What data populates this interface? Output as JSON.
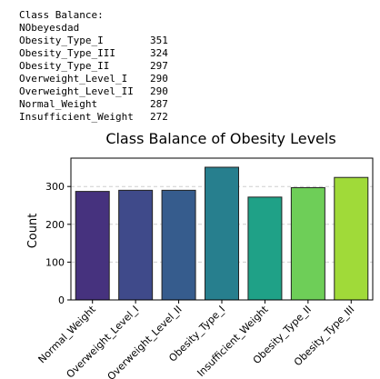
{
  "console": {
    "header": "Class Balance:",
    "subheader": "NObeyesdad",
    "rows": [
      {
        "label": "Obesity_Type_I",
        "count": "351"
      },
      {
        "label": "Obesity_Type_III",
        "count": "324"
      },
      {
        "label": "Obesity_Type_II",
        "count": "297"
      },
      {
        "label": "Overweight_Level_I",
        "count": "290"
      },
      {
        "label": "Overweight_Level_II",
        "count": "290"
      },
      {
        "label": "Normal_Weight",
        "count": "287"
      },
      {
        "label": "Insufficient_Weight",
        "count": "272"
      }
    ]
  },
  "chart_data": {
    "type": "bar",
    "title": "Class Balance of Obesity Levels",
    "xlabel": "",
    "ylabel": "Count",
    "categories": [
      "Normal_Weight",
      "Overweight_Level_I",
      "Overweight_Level_II",
      "Obesity_Type_I",
      "Insufficient_Weight",
      "Obesity_Type_II",
      "Obesity_Type_III"
    ],
    "values": [
      287,
      290,
      290,
      351,
      272,
      297,
      324
    ],
    "colors": [
      "#46327e",
      "#3f4a8a",
      "#365c8d",
      "#277f8e",
      "#1fa187",
      "#6ece58",
      "#a0da39"
    ],
    "ylim": [
      0,
      375
    ],
    "yticks": [
      0,
      100,
      200,
      300
    ],
    "grid": true,
    "legend": "none"
  }
}
